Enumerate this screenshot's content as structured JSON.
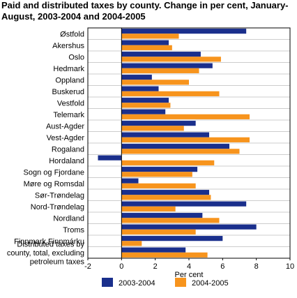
{
  "chart_data": {
    "type": "bar",
    "orientation": "horizontal",
    "title": "Paid and distributed taxes by county. Change in per cent, January-August, 2003-2004 and 2004-2005",
    "xlabel": "Per cent",
    "ylabel": "",
    "xlim": [
      -2,
      10
    ],
    "xticks": [
      "-2",
      "0",
      "2",
      "4",
      "6",
      "8",
      "10"
    ],
    "grid": true,
    "legend_position": "bottom",
    "categories": [
      "Østfold",
      "Akershus",
      "Oslo",
      "Hedmark",
      "Oppland",
      "Buskerud",
      "Vestfold",
      "Telemark",
      "Aust-Agder",
      "Vest-Agder",
      "Rogaland",
      "Hordaland",
      "Sogn og Fjordane",
      "Møre og Romsdal",
      "Sør-Trøndelag",
      "Nord-Trøndelag",
      "Nordland",
      "Troms",
      "Finnmark Finnmárku",
      [
        "Distributed taxes by",
        "county, total, excluding",
        "petroleum taxes"
      ]
    ],
    "series": [
      {
        "name": "2003-2004",
        "color": "#1a2f8c",
        "values": [
          7.4,
          2.8,
          4.7,
          5.4,
          1.8,
          2.2,
          2.8,
          2.6,
          4.4,
          5.2,
          6.4,
          -1.4,
          4.5,
          1.0,
          5.2,
          7.4,
          4.8,
          8.0,
          6.0,
          3.8
        ]
      },
      {
        "name": "2004-2005",
        "color": "#f7941d",
        "values": [
          3.4,
          3.0,
          5.9,
          4.6,
          4.0,
          5.8,
          2.9,
          7.6,
          3.7,
          7.6,
          7.0,
          5.5,
          4.2,
          4.4,
          5.3,
          3.2,
          5.8,
          4.4,
          1.2,
          5.1
        ]
      }
    ]
  }
}
